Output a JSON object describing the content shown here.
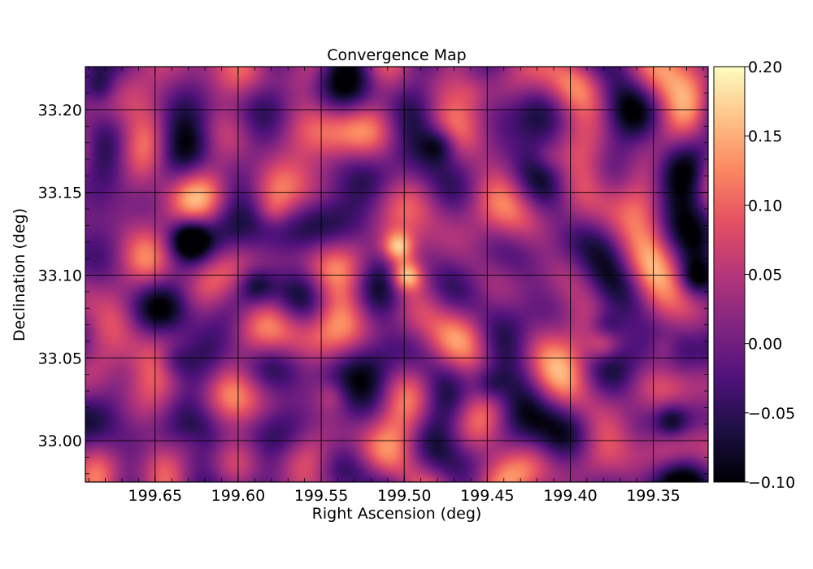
{
  "chart_data": {
    "type": "heatmap",
    "title": "Convergence Map",
    "xlabel": "Right Ascension (deg)",
    "ylabel": "Declination (deg)",
    "xlim": [
      199.692,
      199.317
    ],
    "ylim": [
      32.975,
      33.226
    ],
    "x_inverted": true,
    "xticks": [
      199.65,
      199.6,
      199.55,
      199.5,
      199.45,
      199.4,
      199.35
    ],
    "xtick_labels": [
      "199.65",
      "199.60",
      "199.55",
      "199.50",
      "199.45",
      "199.40",
      "199.35"
    ],
    "yticks": [
      33.0,
      33.05,
      33.1,
      33.15,
      33.2
    ],
    "ytick_labels": [
      "33.00",
      "33.05",
      "33.10",
      "33.15",
      "33.20"
    ],
    "grid": true,
    "colormap": "magma",
    "colorbar": {
      "range": [
        -0.1,
        0.2
      ],
      "ticks": [
        -0.1,
        -0.05,
        0.0,
        0.05,
        0.1,
        0.15,
        0.2
      ],
      "tick_labels": [
        "−0.10",
        "−0.05",
        "0.00",
        "0.05",
        "0.10",
        "0.15",
        "0.20"
      ]
    },
    "peaks": [
      {
        "ra": 199.5,
        "dec": 33.101,
        "value": 0.19
      },
      {
        "ra": 199.505,
        "dec": 33.118,
        "value": 0.17
      },
      {
        "ra": 199.381,
        "dec": 33.06,
        "value": 0.09
      },
      {
        "ra": 199.345,
        "dec": 33.058,
        "value": 0.07
      },
      {
        "ra": 199.545,
        "dec": 33.028,
        "value": 0.07
      },
      {
        "ra": 199.58,
        "dec": 33.14,
        "value": 0.06
      },
      {
        "ra": 199.46,
        "dec": 33.212,
        "value": 0.05
      },
      {
        "ra": 199.415,
        "dec": 33.172,
        "value": 0.06
      },
      {
        "ra": 199.63,
        "dec": 33.0,
        "value": 0.05
      }
    ],
    "troughs": [
      {
        "ra": 199.63,
        "dec": 33.123,
        "value": -0.1
      },
      {
        "ra": 199.34,
        "dec": 33.013,
        "value": -0.1
      },
      {
        "ra": 199.325,
        "dec": 33.1,
        "value": -0.09
      },
      {
        "ra": 199.48,
        "dec": 33.18,
        "value": -0.08
      },
      {
        "ra": 199.38,
        "dec": 33.07,
        "value": -0.08
      },
      {
        "ra": 199.59,
        "dec": 33.095,
        "value": -0.07
      },
      {
        "ra": 199.685,
        "dec": 33.215,
        "value": -0.08
      },
      {
        "ra": 199.45,
        "dec": 33.035,
        "value": -0.06
      },
      {
        "ra": 199.64,
        "dec": 33.05,
        "value": -0.06
      }
    ]
  }
}
